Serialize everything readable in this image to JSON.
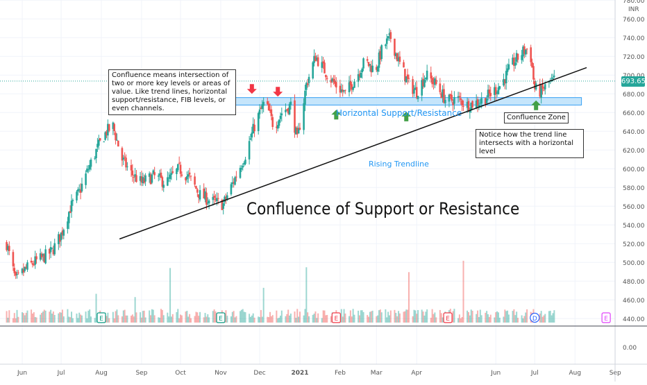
{
  "chart_data": {
    "type": "candlestick",
    "currency_label": "INR",
    "title": "Confluence of Support or Resistance",
    "last_price": "693.65",
    "last_price_value": 693.65,
    "y_range": [
      450,
      785
    ],
    "y_ticks": [
      {
        "label": "780.00",
        "value": 780
      },
      {
        "label": "760.00",
        "value": 760
      },
      {
        "label": "740.00",
        "value": 740
      },
      {
        "label": "720.00",
        "value": 720
      },
      {
        "label": "700.00",
        "value": 700
      },
      {
        "label": "680.00",
        "value": 680
      },
      {
        "label": "660.00",
        "value": 660
      },
      {
        "label": "640.00",
        "value": 640
      },
      {
        "label": "620.00",
        "value": 620
      },
      {
        "label": "600.00",
        "value": 600
      },
      {
        "label": "580.00",
        "value": 580
      },
      {
        "label": "560.00",
        "value": 560
      },
      {
        "label": "540.00",
        "value": 540
      },
      {
        "label": "520.00",
        "value": 520
      },
      {
        "label": "500.00",
        "value": 500
      },
      {
        "label": "480.00",
        "value": 480
      },
      {
        "label": "460.00",
        "value": 460
      },
      {
        "label": "440.00",
        "value": 440
      }
    ],
    "volume_pane_tick": "0.00",
    "x_ticks": [
      "Jun",
      "Jul",
      "Aug",
      "Sep",
      "Oct",
      "Nov",
      "Dec",
      "2021",
      "Feb",
      "Mar",
      "Apr",
      "Jun",
      "Jul",
      "Aug",
      "Sep"
    ],
    "close_path": [
      [
        "2020-05-20",
        520
      ],
      [
        "2020-05-27",
        480
      ],
      [
        "2020-06-03",
        492
      ],
      [
        "2020-06-10",
        500
      ],
      [
        "2020-06-17",
        505
      ],
      [
        "2020-06-24",
        512
      ],
      [
        "2020-07-01",
        530
      ],
      [
        "2020-07-08",
        558
      ],
      [
        "2020-07-15",
        575
      ],
      [
        "2020-07-22",
        600
      ],
      [
        "2020-07-29",
        622
      ],
      [
        "2020-08-05",
        640
      ],
      [
        "2020-08-10",
        645
      ],
      [
        "2020-08-17",
        610
      ],
      [
        "2020-08-24",
        595
      ],
      [
        "2020-09-01",
        585
      ],
      [
        "2020-09-10",
        592
      ],
      [
        "2020-09-20",
        585
      ],
      [
        "2020-09-30",
        600
      ],
      [
        "2020-10-08",
        590
      ],
      [
        "2020-10-16",
        572
      ],
      [
        "2020-10-25",
        565
      ],
      [
        "2020-11-03",
        562
      ],
      [
        "2020-11-12",
        590
      ],
      [
        "2020-11-20",
        615
      ],
      [
        "2020-11-28",
        650
      ],
      [
        "2020-12-05",
        672
      ],
      [
        "2020-12-12",
        645
      ],
      [
        "2020-12-18",
        660
      ],
      [
        "2020-12-25",
        668
      ],
      [
        "2020-12-30",
        630
      ],
      [
        "2021-01-06",
        690
      ],
      [
        "2021-01-13",
        720
      ],
      [
        "2021-01-20",
        705
      ],
      [
        "2021-01-28",
        690
      ],
      [
        "2021-02-05",
        680
      ],
      [
        "2021-02-12",
        695
      ],
      [
        "2021-02-20",
        715
      ],
      [
        "2021-02-28",
        705
      ],
      [
        "2021-03-06",
        730
      ],
      [
        "2021-03-12",
        740
      ],
      [
        "2021-03-18",
        715
      ],
      [
        "2021-03-26",
        690
      ],
      [
        "2021-04-01",
        682
      ],
      [
        "2021-04-08",
        700
      ],
      [
        "2021-04-16",
        690
      ],
      [
        "2021-04-24",
        672
      ],
      [
        "2021-05-02",
        675
      ],
      [
        "2021-05-10",
        668
      ],
      [
        "2021-05-20",
        672
      ],
      [
        "2021-05-28",
        680
      ],
      [
        "2021-06-05",
        690
      ],
      [
        "2021-06-14",
        712
      ],
      [
        "2021-06-22",
        725
      ],
      [
        "2021-06-27",
        730
      ],
      [
        "2021-07-01",
        685
      ],
      [
        "2021-07-06",
        682
      ],
      [
        "2021-07-12",
        692
      ],
      [
        "2021-07-17",
        694
      ]
    ],
    "events": [
      "E",
      "E",
      "E",
      "E",
      "D",
      "E"
    ],
    "annotations": {
      "definition": "Confluence means intersection of two or more key levels or areas of value. Like trend lines, horizontal support/resistance, FIB levels, or even channels.",
      "horizontal": "Horizontal Support/Resistance",
      "trendline": "Rising Trendline",
      "zone": "Confluence Zone",
      "notice": "Notice how the trend line intersects with a horizontal level"
    },
    "support_band": [
      668,
      676
    ],
    "trendline_from": [
      "2020-08-15",
      525
    ],
    "trendline_to": [
      "2021-08-10",
      708
    ],
    "colors": {
      "up": "#26a69a",
      "down": "#ef5350",
      "band": "#bfe3fb",
      "band_border": "#2196f3",
      "text_blue": "#2196f3",
      "price_tag": "#26a69a"
    },
    "grid": true
  }
}
